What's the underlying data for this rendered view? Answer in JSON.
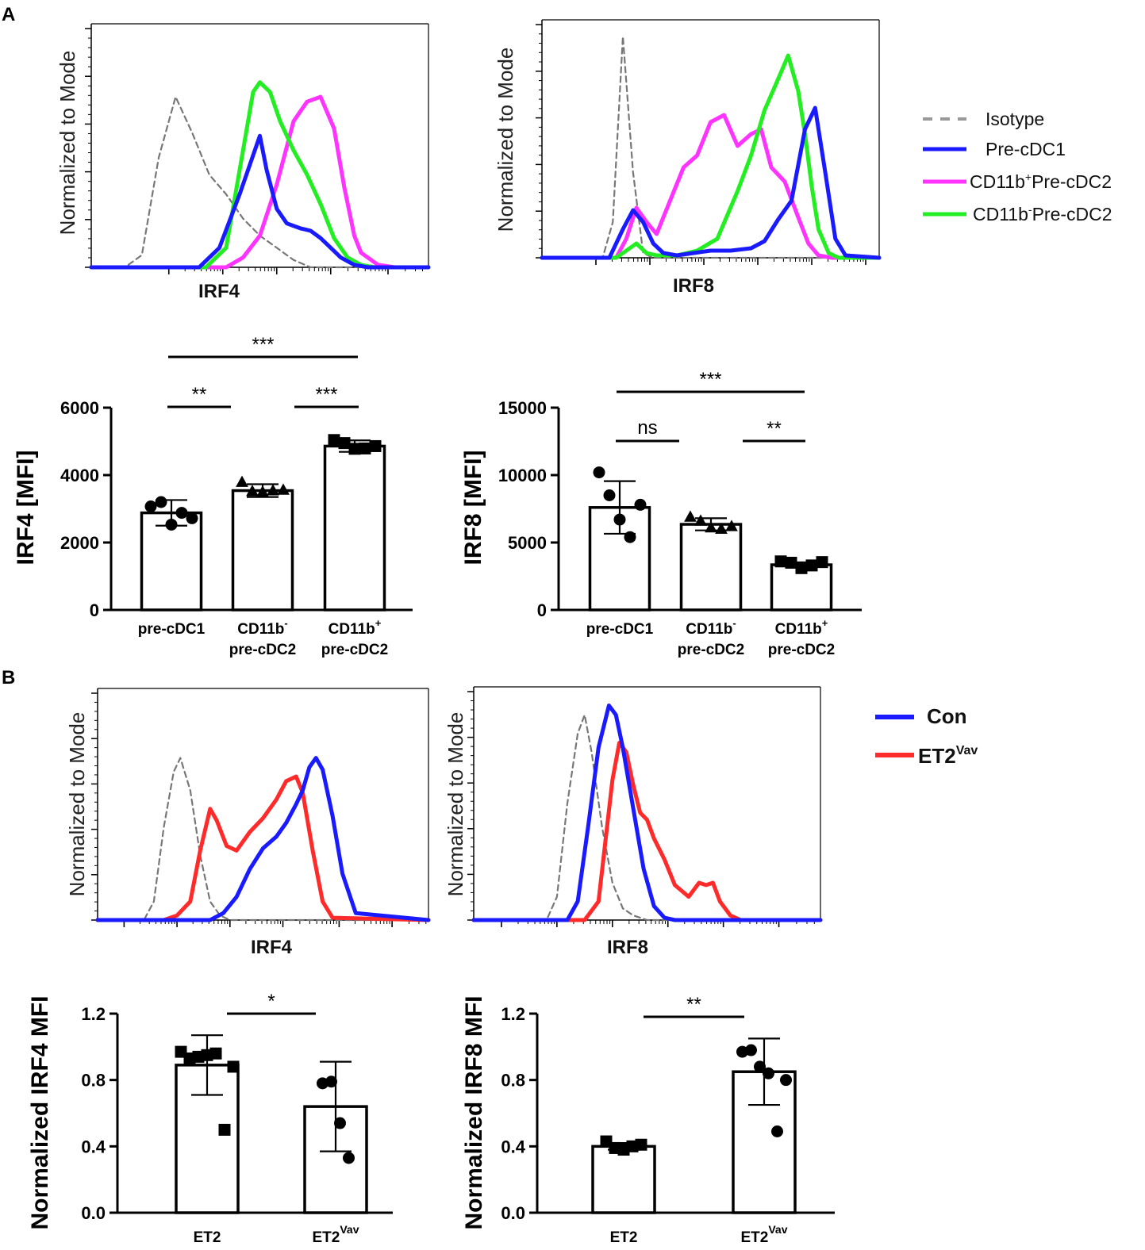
{
  "panels": {
    "A": "A",
    "B": "B"
  },
  "colors": {
    "isotype": "#777777",
    "pre_cdc1": "#1a1aff",
    "cd11b_pos": "#ff33ff",
    "cd11b_neg": "#22ee22",
    "con": "#1a1aff",
    "et2vav": "#ff2a2a"
  },
  "hist_ylabel": "Normalized to Mode",
  "legendA": {
    "isotype": "Isotype",
    "pre_cdc1": "Pre-cDC1",
    "cd11b_pos_a": "CD11b",
    "cd11b_pos_sup": "+",
    "cd11b_pos_b": "Pre-cDC2",
    "cd11b_neg_a": "CD11b",
    "cd11b_neg_sup": "-",
    "cd11b_neg_b": "Pre-cDC2"
  },
  "legendB": {
    "con": "Con",
    "et2": "ET2",
    "vav": "Vav"
  },
  "chart_data": [
    {
      "id": "A_hist_IRF4",
      "type": "line",
      "xlabel": "IRF4",
      "ylabel": "Normalized to Mode",
      "series": [
        {
          "name": "Isotype",
          "style": "dashed",
          "x": [
            0.0,
            0.1,
            0.15,
            0.2,
            0.25,
            0.3,
            0.35,
            0.4,
            0.45,
            0.5,
            0.55,
            0.6,
            0.65,
            0.7,
            0.75,
            1.0
          ],
          "y": [
            0,
            0,
            0.05,
            0.45,
            0.7,
            0.55,
            0.38,
            0.3,
            0.2,
            0.13,
            0.08,
            0.03,
            0,
            0,
            0,
            0
          ]
        },
        {
          "name": "Pre-cDC1",
          "x": [
            0.0,
            0.32,
            0.38,
            0.44,
            0.5,
            0.52,
            0.55,
            0.58,
            0.62,
            0.65,
            0.68,
            0.71,
            0.74,
            0.78,
            0.82,
            1.0
          ],
          "y": [
            0,
            0,
            0.08,
            0.3,
            0.54,
            0.4,
            0.24,
            0.18,
            0.16,
            0.15,
            0.12,
            0.08,
            0.04,
            0.01,
            0,
            0
          ]
        },
        {
          "name": "CD11b+Pre-cDC2",
          "x": [
            0.0,
            0.4,
            0.45,
            0.5,
            0.55,
            0.6,
            0.64,
            0.68,
            0.72,
            0.75,
            0.78,
            0.8,
            0.85,
            0.9,
            1.0
          ],
          "y": [
            0,
            0,
            0.04,
            0.13,
            0.34,
            0.6,
            0.68,
            0.7,
            0.57,
            0.33,
            0.13,
            0.06,
            0.01,
            0,
            0
          ]
        },
        {
          "name": "CD11b-Pre-cDC2",
          "x": [
            0.0,
            0.34,
            0.4,
            0.45,
            0.48,
            0.5,
            0.53,
            0.56,
            0.6,
            0.64,
            0.68,
            0.72,
            0.76,
            0.8,
            0.84,
            1.0
          ],
          "y": [
            0,
            0,
            0.08,
            0.48,
            0.72,
            0.76,
            0.72,
            0.6,
            0.48,
            0.38,
            0.26,
            0.12,
            0.04,
            0.01,
            0,
            0
          ]
        }
      ]
    },
    {
      "id": "A_hist_IRF8",
      "type": "line",
      "xlabel": "IRF8",
      "ylabel": "Normalized to Mode",
      "series": [
        {
          "name": "Isotype",
          "style": "dashed",
          "x": [
            0.0,
            0.18,
            0.21,
            0.24,
            0.27,
            0.3,
            0.33,
            1.0
          ],
          "y": [
            0,
            0,
            0.15,
            0.93,
            0.36,
            0.02,
            0,
            0
          ]
        },
        {
          "name": "Pre-cDC1",
          "x": [
            0.0,
            0.2,
            0.24,
            0.27,
            0.3,
            0.33,
            0.36,
            0.4,
            0.45,
            0.5,
            0.56,
            0.62,
            0.66,
            0.7,
            0.74,
            0.78,
            0.81,
            0.84,
            0.87,
            0.9,
            1.0
          ],
          "y": [
            0,
            0,
            0.12,
            0.2,
            0.15,
            0.06,
            0.02,
            0.01,
            0.02,
            0.03,
            0.03,
            0.04,
            0.07,
            0.16,
            0.24,
            0.54,
            0.63,
            0.36,
            0.08,
            0.01,
            0
          ]
        },
        {
          "name": "CD11b+Pre-cDC2",
          "x": [
            0.0,
            0.22,
            0.25,
            0.28,
            0.31,
            0.34,
            0.38,
            0.42,
            0.46,
            0.5,
            0.54,
            0.58,
            0.62,
            0.65,
            0.68,
            0.72,
            0.76,
            0.79,
            0.82,
            0.86,
            0.9,
            1.0
          ],
          "y": [
            0,
            0,
            0.08,
            0.21,
            0.15,
            0.1,
            0.24,
            0.38,
            0.43,
            0.57,
            0.6,
            0.47,
            0.52,
            0.54,
            0.38,
            0.32,
            0.17,
            0.06,
            0.01,
            0,
            0,
            0
          ]
        },
        {
          "name": "CD11b-Pre-cDC2",
          "x": [
            0.0,
            0.22,
            0.25,
            0.28,
            0.31,
            0.34,
            0.4,
            0.46,
            0.52,
            0.58,
            0.62,
            0.66,
            0.7,
            0.73,
            0.76,
            0.78,
            0.8,
            0.82,
            0.85,
            0.88,
            1.0
          ],
          "y": [
            0,
            0,
            0.03,
            0.06,
            0.02,
            0.01,
            0.01,
            0.03,
            0.08,
            0.28,
            0.43,
            0.62,
            0.75,
            0.85,
            0.7,
            0.52,
            0.3,
            0.12,
            0.02,
            0,
            0
          ]
        }
      ]
    },
    {
      "id": "A_bar_IRF4",
      "type": "bar",
      "ylabel": "IRF4 [MFI]",
      "ylim": [
        0,
        6000
      ],
      "yticks": [
        0,
        2000,
        4000,
        6000
      ],
      "categories": [
        "pre-cDC1",
        "CD11b- pre-cDC2",
        "CD11b+ pre-cDC2"
      ],
      "cat_labels": [
        [
          "pre-cDC1"
        ],
        [
          "CD11b",
          "-",
          "pre-cDC2"
        ],
        [
          "CD11b",
          "+",
          "pre-cDC2"
        ]
      ],
      "values": [
        2880,
        3540,
        4860
      ],
      "sd": [
        380,
        190,
        170
      ],
      "markers": [
        "circle",
        "triangle",
        "square"
      ],
      "points": [
        [
          3070,
          3200,
          2530,
          2880,
          2720
        ],
        [
          3790,
          3520,
          3500,
          3540,
          3560
        ],
        [
          5040,
          4950,
          4780,
          4790,
          4860
        ]
      ],
      "significance": [
        {
          "from": 0,
          "to": 1,
          "label": "**",
          "level": 1
        },
        {
          "from": 1,
          "to": 2,
          "label": "***",
          "level": 1
        },
        {
          "from": 0,
          "to": 2,
          "label": "***",
          "level": 2
        }
      ]
    },
    {
      "id": "A_bar_IRF8",
      "type": "bar",
      "ylabel": "IRF8 [MFI]",
      "ylim": [
        0,
        15000
      ],
      "yticks": [
        0,
        5000,
        10000,
        15000
      ],
      "categories": [
        "pre-cDC1",
        "CD11b- pre-cDC2",
        "CD11b+ pre-cDC2"
      ],
      "cat_labels": [
        [
          "pre-cDC1"
        ],
        [
          "CD11b",
          "-",
          "pre-cDC2"
        ],
        [
          "CD11b",
          "+",
          "pre-cDC2"
        ]
      ],
      "values": [
        7600,
        6350,
        3350
      ],
      "sd": [
        1950,
        450,
        180
      ],
      "markers": [
        "circle",
        "triangle",
        "square"
      ],
      "points": [
        [
          10200,
          8500,
          6700,
          5400,
          7800
        ],
        [
          6900,
          6600,
          6100,
          6000,
          6200
        ],
        [
          3600,
          3500,
          3100,
          3300,
          3550
        ]
      ],
      "significance": [
        {
          "from": 0,
          "to": 1,
          "label": "ns",
          "level": 1
        },
        {
          "from": 1,
          "to": 2,
          "label": "**",
          "level": 1
        },
        {
          "from": 0,
          "to": 2,
          "label": "***",
          "level": 2
        }
      ]
    },
    {
      "id": "B_hist_IRF4",
      "type": "line",
      "xlabel": "IRF4",
      "ylabel": "Normalized to Mode",
      "series": [
        {
          "name": "Isotype",
          "style": "dashed",
          "x": [
            0.0,
            0.14,
            0.17,
            0.2,
            0.23,
            0.25,
            0.28,
            0.31,
            0.34,
            0.37,
            0.4,
            0.45,
            1.0
          ],
          "y": [
            0,
            0,
            0.08,
            0.4,
            0.64,
            0.7,
            0.56,
            0.28,
            0.08,
            0.02,
            0,
            0,
            0
          ]
        },
        {
          "name": "Con",
          "x": [
            0.0,
            0.34,
            0.38,
            0.42,
            0.46,
            0.5,
            0.54,
            0.57,
            0.6,
            0.62,
            0.64,
            0.66,
            0.68,
            0.71,
            0.74,
            0.78,
            1.0
          ],
          "y": [
            0,
            0,
            0.03,
            0.1,
            0.22,
            0.31,
            0.36,
            0.42,
            0.5,
            0.56,
            0.66,
            0.7,
            0.65,
            0.45,
            0.2,
            0.03,
            0
          ]
        },
        {
          "name": "ET2Vav",
          "x": [
            0.0,
            0.2,
            0.24,
            0.28,
            0.31,
            0.34,
            0.36,
            0.39,
            0.42,
            0.46,
            0.5,
            0.54,
            0.57,
            0.6,
            0.62,
            0.65,
            0.68,
            0.71,
            1.0
          ],
          "y": [
            0,
            0,
            0.02,
            0.08,
            0.3,
            0.48,
            0.43,
            0.32,
            0.3,
            0.38,
            0.44,
            0.52,
            0.6,
            0.62,
            0.55,
            0.3,
            0.08,
            0.01,
            0
          ]
        }
      ]
    },
    {
      "id": "B_hist_IRF8",
      "type": "line",
      "xlabel": "IRF8",
      "ylabel": "Normalized to Mode",
      "series": [
        {
          "name": "Isotype",
          "style": "dashed",
          "x": [
            0.0,
            0.21,
            0.24,
            0.27,
            0.3,
            0.32,
            0.34,
            0.37,
            0.4,
            0.43,
            0.46,
            0.5,
            1.0
          ],
          "y": [
            0,
            0,
            0.1,
            0.5,
            0.8,
            0.88,
            0.72,
            0.4,
            0.16,
            0.05,
            0.02,
            0,
            0
          ]
        },
        {
          "name": "Con",
          "x": [
            0.0,
            0.27,
            0.3,
            0.33,
            0.36,
            0.39,
            0.41,
            0.43,
            0.46,
            0.49,
            0.52,
            0.55,
            0.58,
            1.0
          ],
          "y": [
            0,
            0,
            0.08,
            0.4,
            0.74,
            0.92,
            0.88,
            0.74,
            0.48,
            0.22,
            0.06,
            0.01,
            0,
            0
          ]
        },
        {
          "name": "ET2Vav",
          "x": [
            0.0,
            0.32,
            0.36,
            0.4,
            0.42,
            0.44,
            0.46,
            0.48,
            0.5,
            0.52,
            0.55,
            0.58,
            0.62,
            0.65,
            0.67,
            0.69,
            0.71,
            0.74,
            0.77,
            1.0
          ],
          "y": [
            0,
            0,
            0.08,
            0.6,
            0.76,
            0.72,
            0.58,
            0.46,
            0.43,
            0.35,
            0.26,
            0.15,
            0.1,
            0.16,
            0.15,
            0.16,
            0.08,
            0.02,
            0,
            0
          ]
        }
      ]
    },
    {
      "id": "B_bar_IRF4",
      "type": "bar",
      "ylabel": "Normalized IRF4  MFI",
      "ylim": [
        0,
        1.2
      ],
      "yticks": [
        0.0,
        0.4,
        0.8,
        1.2
      ],
      "categories": [
        "ET2",
        "ET2Vav"
      ],
      "cat_labels": [
        [
          "ET2"
        ],
        [
          "ET2",
          "Vav"
        ]
      ],
      "values": [
        0.89,
        0.64
      ],
      "sd": [
        0.18,
        0.27
      ],
      "markers": [
        "square",
        "circle"
      ],
      "points": [
        [
          0.97,
          0.93,
          0.94,
          0.95,
          0.96,
          0.5,
          0.88
        ],
        [
          0.78,
          0.79,
          0.54,
          0.33
        ]
      ],
      "significance": [
        {
          "from": 0,
          "to": 1,
          "label": "*",
          "level": 1
        }
      ]
    },
    {
      "id": "B_bar_IRF8",
      "type": "bar",
      "ylabel": "Normalized IRF8  MFI",
      "ylim": [
        0,
        1.2
      ],
      "yticks": [
        0.0,
        0.4,
        0.8,
        1.2
      ],
      "categories": [
        "ET2",
        "ET2Vav"
      ],
      "cat_labels": [
        [
          "ET2"
        ],
        [
          "ET2",
          "Vav"
        ]
      ],
      "values": [
        0.4,
        0.85
      ],
      "sd": [
        0.02,
        0.2
      ],
      "markers": [
        "square",
        "circle"
      ],
      "points": [
        [
          0.43,
          0.39,
          0.38,
          0.4,
          0.41
        ],
        [
          0.97,
          0.98,
          0.88,
          0.84,
          0.49,
          0.8
        ]
      ],
      "significance": [
        {
          "from": 0,
          "to": 1,
          "label": "**",
          "level": 1
        }
      ]
    }
  ]
}
